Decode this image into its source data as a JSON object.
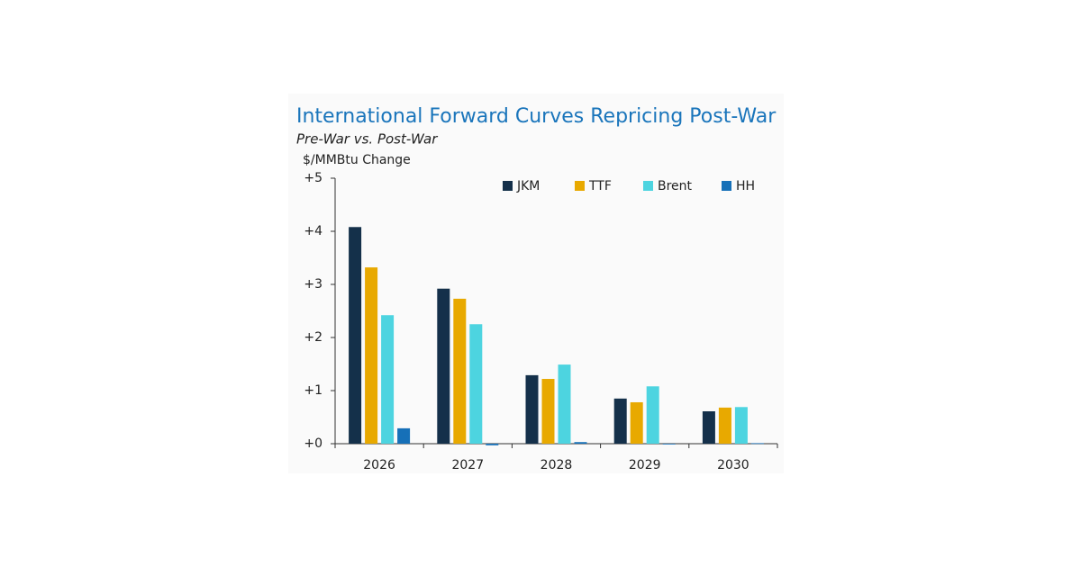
{
  "chart_data": {
    "type": "bar",
    "title": "International Forward Curves Repricing Post-War",
    "subtitle": "Pre-War vs. Post-War",
    "y_label": "$/MMBtu Change",
    "categories": [
      "2026",
      "2027",
      "2028",
      "2029",
      "2030"
    ],
    "series": [
      {
        "name": "JKM",
        "color": "#14304a",
        "values": [
          4.08,
          2.92,
          1.29,
          0.85,
          0.61
        ]
      },
      {
        "name": "TTF",
        "color": "#e8a900",
        "values": [
          3.32,
          2.73,
          1.22,
          0.78,
          0.68
        ]
      },
      {
        "name": "Brent",
        "color": "#4dd4e0",
        "values": [
          2.42,
          2.25,
          1.49,
          1.08,
          0.69
        ]
      },
      {
        "name": "HH",
        "color": "#1670b8",
        "values": [
          0.29,
          -0.03,
          0.03,
          0.0,
          0.01
        ]
      }
    ],
    "ylim": [
      0,
      5
    ],
    "yticks": [
      {
        "value": 0,
        "label": "+0"
      },
      {
        "value": 1,
        "label": "+1"
      },
      {
        "value": 2,
        "label": "+2"
      },
      {
        "value": 3,
        "label": "+3"
      },
      {
        "value": 4,
        "label": "+4"
      },
      {
        "value": 5,
        "label": "+5"
      }
    ],
    "legend": "top-right",
    "grid": false
  }
}
